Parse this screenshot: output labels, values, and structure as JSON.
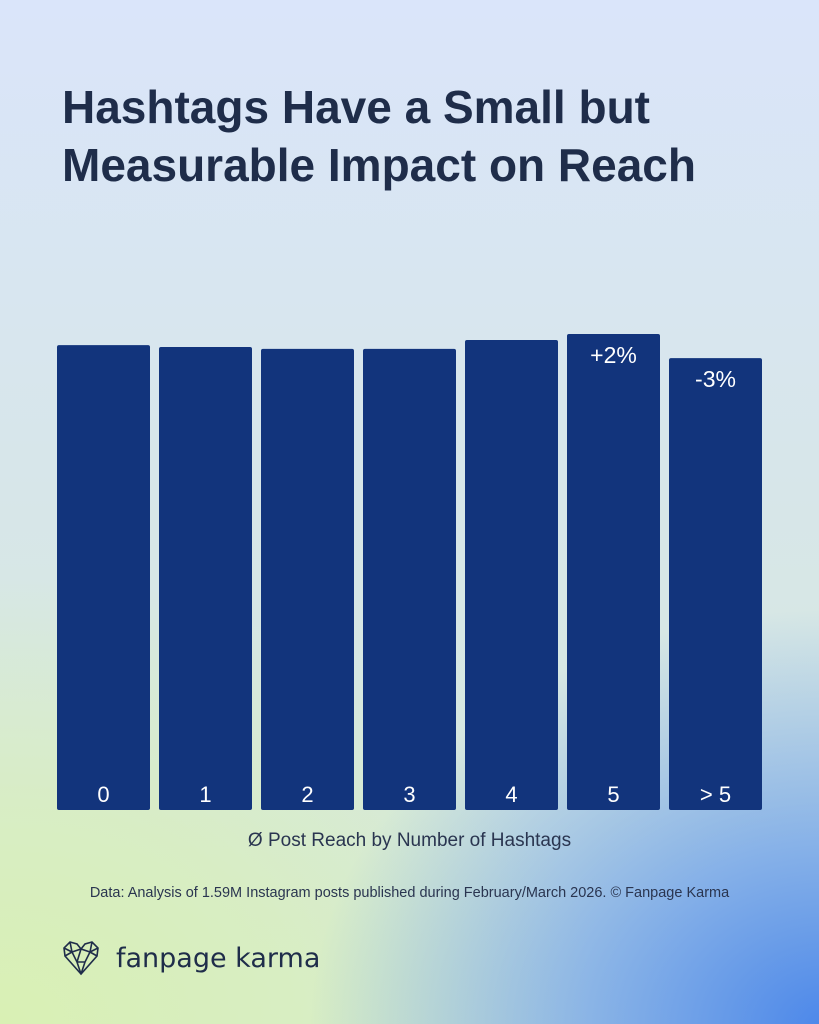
{
  "title": "Hashtags Have a Small but Measurable Impact on Reach",
  "chart_data": {
    "type": "bar",
    "title": "Hashtags Have a Small but Measurable Impact on Reach",
    "xlabel": "Ø Post Reach by Number of Hashtags",
    "ylabel": "",
    "categories": [
      "0",
      "1",
      "2",
      "3",
      "4",
      "5",
      "> 5"
    ],
    "values": [
      100.2,
      99.8,
      99.4,
      99.4,
      101.3,
      102.6,
      97.4
    ],
    "data_labels": [
      "",
      "",
      "",
      "",
      "",
      "+2%",
      "-3%"
    ],
    "ylim": [
      0,
      102.6
    ],
    "grid": false,
    "bar_color": "#12347c"
  },
  "source": "Data: Analysis of 1.59M Instagram posts published during February/March 2026. © Fanpage Karma",
  "brand": {
    "name": "fanpage karma"
  }
}
